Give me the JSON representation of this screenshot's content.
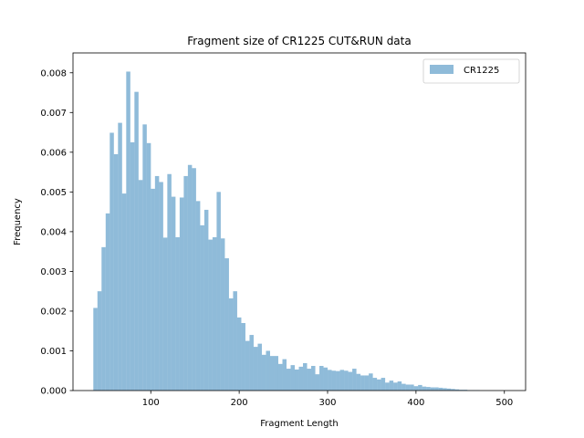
{
  "chart_data": {
    "type": "bar",
    "title": "Fragment size of CR1225 CUT&RUN data",
    "xlabel": "Fragment Length",
    "ylabel": "Frequency",
    "xlim": [
      12,
      524
    ],
    "ylim": [
      0,
      0.0085
    ],
    "x_ticks": [
      100,
      200,
      300,
      400,
      500
    ],
    "y_ticks": [
      0.0,
      0.001,
      0.002,
      0.003,
      0.004,
      0.005,
      0.006,
      0.007,
      0.008
    ],
    "y_tick_labels": [
      "0.000",
      "0.001",
      "0.002",
      "0.003",
      "0.004",
      "0.005",
      "0.006",
      "0.007",
      "0.008"
    ],
    "bin_start": 35,
    "bin_width": 4.65,
    "legend_position": "top-right",
    "grid": false,
    "series": [
      {
        "name": "CR1225",
        "color": "#1f77b4",
        "alpha": 0.5,
        "values": [
          0.00208,
          0.0025,
          0.00361,
          0.00446,
          0.00649,
          0.00595,
          0.00674,
          0.00496,
          0.00803,
          0.00625,
          0.00752,
          0.0053,
          0.0067,
          0.00623,
          0.00508,
          0.0054,
          0.00525,
          0.00385,
          0.00545,
          0.00488,
          0.00386,
          0.00486,
          0.0054,
          0.00568,
          0.0056,
          0.00477,
          0.00416,
          0.00455,
          0.0038,
          0.00386,
          0.005,
          0.00383,
          0.00333,
          0.00232,
          0.0025,
          0.00184,
          0.0017,
          0.00125,
          0.0014,
          0.0011,
          0.00118,
          0.0009,
          0.001,
          0.00087,
          0.00087,
          0.00067,
          0.00079,
          0.00055,
          0.00064,
          0.00053,
          0.0006,
          0.00069,
          0.00055,
          0.00062,
          0.00041,
          0.00062,
          0.00058,
          0.00052,
          0.0005,
          0.00049,
          0.00052,
          0.0005,
          0.00047,
          0.00055,
          0.00042,
          0.00038,
          0.00038,
          0.00043,
          0.00032,
          0.00028,
          0.00032,
          0.0002,
          0.00025,
          0.0002,
          0.00023,
          0.00017,
          0.00015,
          0.00015,
          0.00011,
          0.00014,
          0.0001,
          9e-05,
          8e-05,
          8e-05,
          7e-05,
          6e-05,
          5e-05,
          4e-05,
          3e-05,
          2e-05,
          2e-05,
          1e-05,
          1e-05,
          1e-05
        ]
      }
    ]
  }
}
